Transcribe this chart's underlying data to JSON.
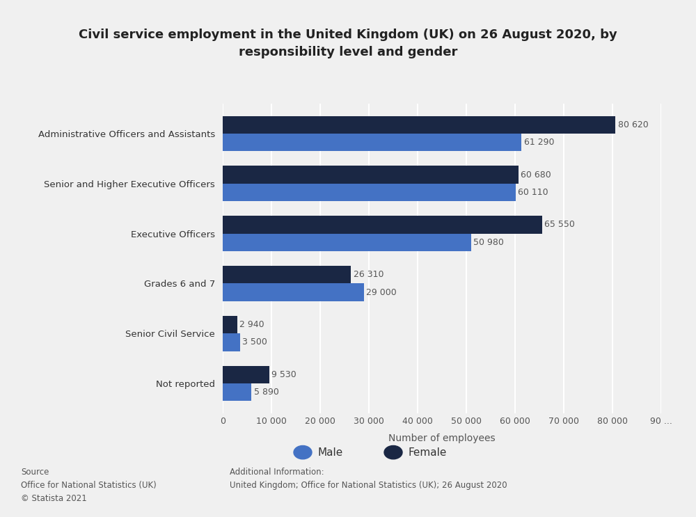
{
  "title": "Civil service employment in the United Kingdom (UK) on 26 August 2020, by\nresponsibility level and gender",
  "categories": [
    "Administrative Officers and Assistants",
    "Senior and Higher Executive Officers",
    "Executive Officers",
    "Grades 6 and 7",
    "Senior Civil Service",
    "Not reported"
  ],
  "female_values": [
    80620,
    60680,
    65550,
    26310,
    2940,
    9530
  ],
  "male_values": [
    61290,
    60110,
    50980,
    29000,
    3500,
    5890
  ],
  "female_labels": [
    "80 620",
    "60 680",
    "65 550",
    "26 310",
    "2 940",
    "9 530"
  ],
  "male_labels": [
    "61 290",
    "60 110",
    "50 980",
    "29 000",
    "3 500",
    "5 890"
  ],
  "female_color": "#1a2744",
  "male_color": "#4472c4",
  "xlabel": "Number of employees",
  "background_color": "#f0f0f0",
  "plot_background": "#f0f0f0",
  "xlim_max": 90000,
  "xticks": [
    0,
    10000,
    20000,
    30000,
    40000,
    50000,
    60000,
    70000,
    80000,
    90000
  ],
  "xlabels": [
    "0",
    "10 000",
    "20 000",
    "30 000",
    "40 000",
    "50 000",
    "60 000",
    "70 000",
    "80 000",
    "90 ..."
  ],
  "source_text": "Source\nOffice for National Statistics (UK)\n© Statista 2021",
  "additional_info": "Additional Information:\nUnited Kingdom; Office for National Statistics (UK); 26 August 2020"
}
